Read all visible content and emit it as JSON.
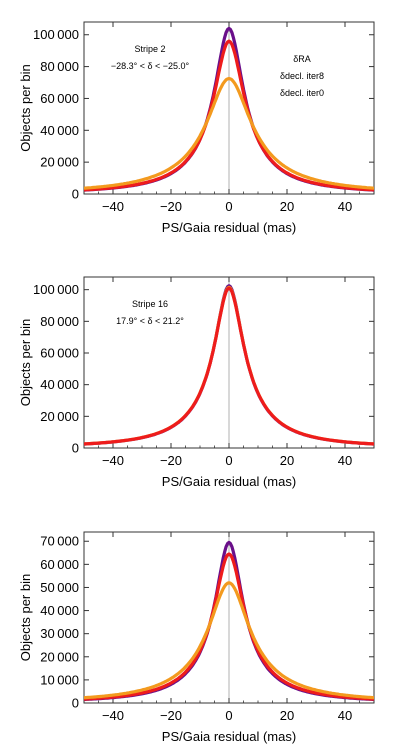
{
  "colors": {
    "dRA": "#6a0f8a",
    "ddecl_iter8": "#ee1c1c",
    "ddecl_iter0": "#f39a1e",
    "frame": "#333333",
    "zero_line": "#b0b0b0"
  },
  "chart_data": [
    {
      "type": "line",
      "xlabel": "PS/Gaia residual (mas)",
      "ylabel": "Objects per bin",
      "xlim": [
        -50,
        50
      ],
      "ylim": [
        0,
        108000
      ],
      "x_ticks": [
        -40,
        -20,
        0,
        20,
        40
      ],
      "x_tick_labels": [
        "−40",
        "−20",
        "0",
        "20",
        "40"
      ],
      "y_ticks": [
        0,
        20000,
        40000,
        60000,
        80000,
        100000
      ],
      "y_tick_labels": [
        "0",
        "20 000",
        "40 000",
        "60 000",
        "80 000",
        "100 000"
      ],
      "grid": false,
      "annotation": [
        "Stripe 2",
        "−28.3° < δ < −25.0°"
      ],
      "legend": [
        "δRA",
        "δdecl. iter8",
        "δdecl. iter0"
      ],
      "legend_position": "top-right",
      "series": [
        {
          "name": "δRA",
          "color": "#6a0f8a",
          "peak": 104000,
          "hwhm": 5.6,
          "tail": 0.25
        },
        {
          "name": "δdecl. iter8",
          "color": "#ee1c1c",
          "peak": 96000,
          "hwhm": 6.0,
          "tail": 0.25
        },
        {
          "name": "δdecl. iter0",
          "color": "#f39a1e",
          "peak": 72500,
          "hwhm": 8.6,
          "tail": 0.22
        }
      ]
    },
    {
      "type": "line",
      "xlabel": "PS/Gaia residual (mas)",
      "ylabel": "Objects per bin",
      "xlim": [
        -50,
        50
      ],
      "ylim": [
        0,
        108000
      ],
      "x_ticks": [
        -40,
        -20,
        0,
        20,
        40
      ],
      "x_tick_labels": [
        "−40",
        "−20",
        "0",
        "20",
        "40"
      ],
      "y_ticks": [
        0,
        20000,
        40000,
        60000,
        80000,
        100000
      ],
      "y_tick_labels": [
        "0",
        "20 000",
        "40 000",
        "60 000",
        "80 000",
        "100 000"
      ],
      "grid": false,
      "annotation": [
        "Stripe 16",
        "17.9° < δ < 21.2°"
      ],
      "series": [
        {
          "name": "",
          "color": "#6a0f8a",
          "peak": 102500,
          "hwhm": 5.7,
          "tail": 0.25
        },
        {
          "name": "",
          "color": "#f39a1e",
          "peak": 101500,
          "hwhm": 5.8,
          "tail": 0.25
        },
        {
          "name": "",
          "color": "#ee1c1c",
          "peak": 101000,
          "hwhm": 5.8,
          "tail": 0.25
        }
      ]
    },
    {
      "type": "line",
      "xlabel": "PS/Gaia residual (mas)",
      "ylabel": "Objects per bin",
      "xlim": [
        -50,
        50
      ],
      "ylim": [
        0,
        74000
      ],
      "x_ticks": [
        -40,
        -20,
        0,
        20,
        40
      ],
      "x_tick_labels": [
        "−40",
        "−20",
        "0",
        "20",
        "40"
      ],
      "y_ticks": [
        0,
        10000,
        20000,
        30000,
        40000,
        50000,
        60000,
        70000
      ],
      "y_tick_labels": [
        "0",
        "10 000",
        "20 000",
        "30 000",
        "40 000",
        "50 000",
        "60 000",
        "70 000"
      ],
      "grid": false,
      "series": [
        {
          "name": "",
          "color": "#6a0f8a",
          "peak": 69500,
          "hwhm": 5.4,
          "tail": 0.25
        },
        {
          "name": "",
          "color": "#ee1c1c",
          "peak": 64500,
          "hwhm": 5.9,
          "tail": 0.25
        },
        {
          "name": "",
          "color": "#f39a1e",
          "peak": 52000,
          "hwhm": 8.0,
          "tail": 0.22
        }
      ]
    }
  ]
}
